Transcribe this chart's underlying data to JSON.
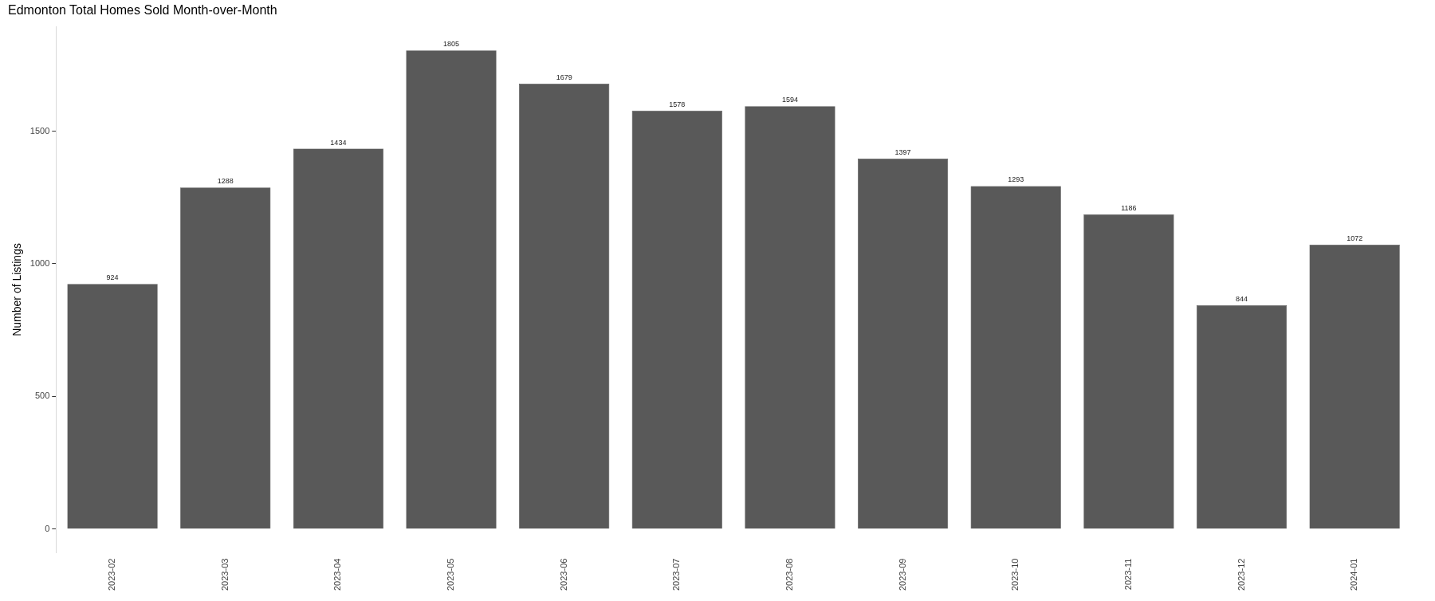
{
  "chart_data": {
    "type": "bar",
    "title": "Edmonton Total Homes Sold Month-over-Month",
    "ylabel": "Number of Listings",
    "categories": [
      "2023-02",
      "2023-03",
      "2023-04",
      "2023-05",
      "2023-06",
      "2023-07",
      "2023-08",
      "2023-09",
      "2023-10",
      "2023-11",
      "2023-12",
      "2024-01"
    ],
    "values": [
      924,
      1288,
      1434,
      1805,
      1679,
      1578,
      1594,
      1397,
      1293,
      1186,
      844,
      1072
    ],
    "color": "#595959",
    "ylim": [
      -90,
      1895
    ],
    "yticks": [
      0,
      500,
      {
        "value": 1000,
        "label": "1000"
      },
      {
        "value": 1500,
        "label": "1500"
      }
    ],
    "grid": false,
    "legend": false,
    "data_labels": true
  }
}
